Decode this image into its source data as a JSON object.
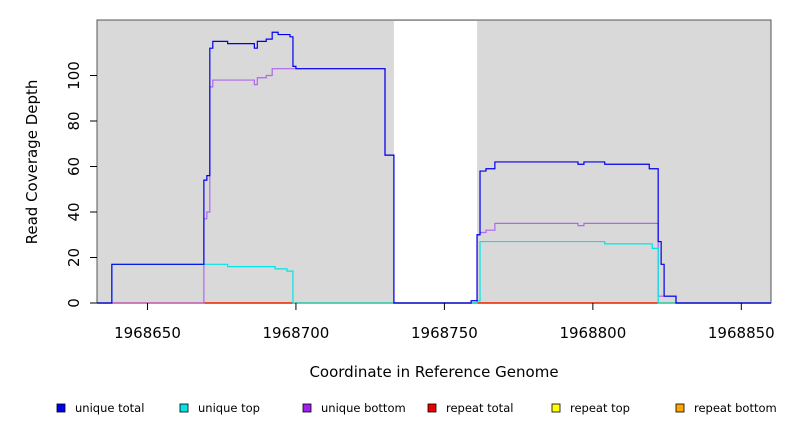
{
  "chart_data": {
    "type": "line",
    "title": "",
    "xlabel": "Coordinate in Reference Genome",
    "ylabel": "Read Coverage Depth",
    "xlim": [
      1968633,
      1968860
    ],
    "ylim": [
      0,
      120
    ],
    "x_ticks": [
      1968650,
      1968700,
      1968750,
      1968800,
      1968850
    ],
    "y_ticks": [
      0,
      20,
      40,
      60,
      80,
      100
    ],
    "excluded_region": [
      1968733,
      1968761
    ],
    "grid": false,
    "legend_position": "bottom",
    "series": [
      {
        "name": "unique total",
        "color": "#0000ee",
        "points": [
          [
            1968633,
            0
          ],
          [
            1968638,
            0
          ],
          [
            1968638,
            17
          ],
          [
            1968669,
            17
          ],
          [
            1968669,
            54
          ],
          [
            1968670,
            54
          ],
          [
            1968670,
            56
          ],
          [
            1968671,
            56
          ],
          [
            1968671,
            112
          ],
          [
            1968672,
            112
          ],
          [
            1968672,
            115
          ],
          [
            1968677,
            115
          ],
          [
            1968677,
            114
          ],
          [
            1968686,
            114
          ],
          [
            1968686,
            112
          ],
          [
            1968687,
            112
          ],
          [
            1968687,
            115
          ],
          [
            1968690,
            115
          ],
          [
            1968690,
            116
          ],
          [
            1968692,
            116
          ],
          [
            1968692,
            119
          ],
          [
            1968694,
            119
          ],
          [
            1968694,
            118
          ],
          [
            1968698,
            118
          ],
          [
            1968698,
            117
          ],
          [
            1968699,
            117
          ],
          [
            1968699,
            104
          ],
          [
            1968700,
            104
          ],
          [
            1968700,
            103
          ],
          [
            1968730,
            103
          ],
          [
            1968730,
            65
          ],
          [
            1968733,
            65
          ],
          [
            1968733,
            0
          ],
          [
            1968759,
            0
          ],
          [
            1968759,
            1
          ],
          [
            1968761,
            1
          ],
          [
            1968761,
            30
          ],
          [
            1968762,
            30
          ],
          [
            1968762,
            58
          ],
          [
            1968764,
            58
          ],
          [
            1968764,
            59
          ],
          [
            1968767,
            59
          ],
          [
            1968767,
            62
          ],
          [
            1968795,
            62
          ],
          [
            1968795,
            61
          ],
          [
            1968797,
            61
          ],
          [
            1968797,
            62
          ],
          [
            1968804,
            62
          ],
          [
            1968804,
            61
          ],
          [
            1968819,
            61
          ],
          [
            1968819,
            59
          ],
          [
            1968822,
            59
          ],
          [
            1968822,
            27
          ],
          [
            1968823,
            27
          ],
          [
            1968823,
            17
          ],
          [
            1968824,
            17
          ],
          [
            1968824,
            3
          ],
          [
            1968828,
            3
          ],
          [
            1968828,
            0
          ],
          [
            1968860,
            0
          ]
        ]
      },
      {
        "name": "unique top",
        "color": "#00e5e5",
        "points": [
          [
            1968633,
            0
          ],
          [
            1968638,
            0
          ],
          [
            1968638,
            17
          ],
          [
            1968669,
            17
          ],
          [
            1968669,
            17
          ],
          [
            1968677,
            17
          ],
          [
            1968677,
            16
          ],
          [
            1968693,
            16
          ],
          [
            1968693,
            15
          ],
          [
            1968697,
            15
          ],
          [
            1968697,
            14
          ],
          [
            1968699,
            14
          ],
          [
            1968699,
            0
          ],
          [
            1968733,
            0
          ],
          [
            1968761,
            0
          ],
          [
            1968761,
            1
          ],
          [
            1968762,
            1
          ],
          [
            1968762,
            27
          ],
          [
            1968804,
            27
          ],
          [
            1968804,
            26
          ],
          [
            1968820,
            26
          ],
          [
            1968820,
            24
          ],
          [
            1968822,
            24
          ],
          [
            1968822,
            0
          ],
          [
            1968860,
            0
          ]
        ]
      },
      {
        "name": "unique bottom",
        "color": "#b066ee",
        "points": [
          [
            1968633,
            0
          ],
          [
            1968669,
            0
          ],
          [
            1968669,
            37
          ],
          [
            1968670,
            37
          ],
          [
            1968670,
            40
          ],
          [
            1968671,
            40
          ],
          [
            1968671,
            95
          ],
          [
            1968672,
            95
          ],
          [
            1968672,
            98
          ],
          [
            1968686,
            98
          ],
          [
            1968686,
            96
          ],
          [
            1968687,
            96
          ],
          [
            1968687,
            99
          ],
          [
            1968690,
            99
          ],
          [
            1968690,
            100
          ],
          [
            1968692,
            100
          ],
          [
            1968692,
            103
          ],
          [
            1968700,
            103
          ],
          [
            1968730,
            103
          ],
          [
            1968730,
            65
          ],
          [
            1968733,
            65
          ],
          [
            1968733,
            0
          ],
          [
            1968761,
            0
          ],
          [
            1968761,
            30
          ],
          [
            1968762,
            30
          ],
          [
            1968762,
            31
          ],
          [
            1968764,
            31
          ],
          [
            1968764,
            32
          ],
          [
            1968767,
            32
          ],
          [
            1968767,
            35
          ],
          [
            1968795,
            35
          ],
          [
            1968795,
            34
          ],
          [
            1968797,
            34
          ],
          [
            1968797,
            35
          ],
          [
            1968822,
            35
          ],
          [
            1968822,
            3
          ],
          [
            1968824,
            3
          ],
          [
            1968828,
            3
          ],
          [
            1968828,
            0
          ],
          [
            1968860,
            0
          ]
        ]
      },
      {
        "name": "repeat total",
        "color": "#ee0000",
        "points": [
          [
            1968633,
            0
          ],
          [
            1968860,
            0
          ]
        ]
      },
      {
        "name": "repeat top",
        "color": "#eeee00",
        "points": [
          [
            1968633,
            0
          ],
          [
            1968860,
            0
          ]
        ]
      },
      {
        "name": "repeat bottom",
        "color": "#ffa500",
        "points": [
          [
            1968633,
            0
          ],
          [
            1968860,
            0
          ]
        ]
      }
    ]
  },
  "legend": [
    {
      "label": "unique total",
      "color": "#0000ee"
    },
    {
      "label": "unique top",
      "color": "#00e5e5"
    },
    {
      "label": "unique bottom",
      "color": "#a020f0"
    },
    {
      "label": "repeat total",
      "color": "#ee0000"
    },
    {
      "label": "repeat top",
      "color": "#ffff00"
    },
    {
      "label": "repeat bottom",
      "color": "#ffa500"
    }
  ]
}
